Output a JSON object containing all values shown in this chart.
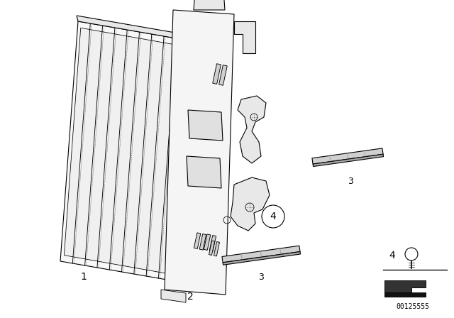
{
  "bg_color": "#ffffff",
  "line_color": "#000000",
  "part_number": "00125555",
  "fig_w": 6.4,
  "fig_h": 4.48,
  "dpi": 100
}
